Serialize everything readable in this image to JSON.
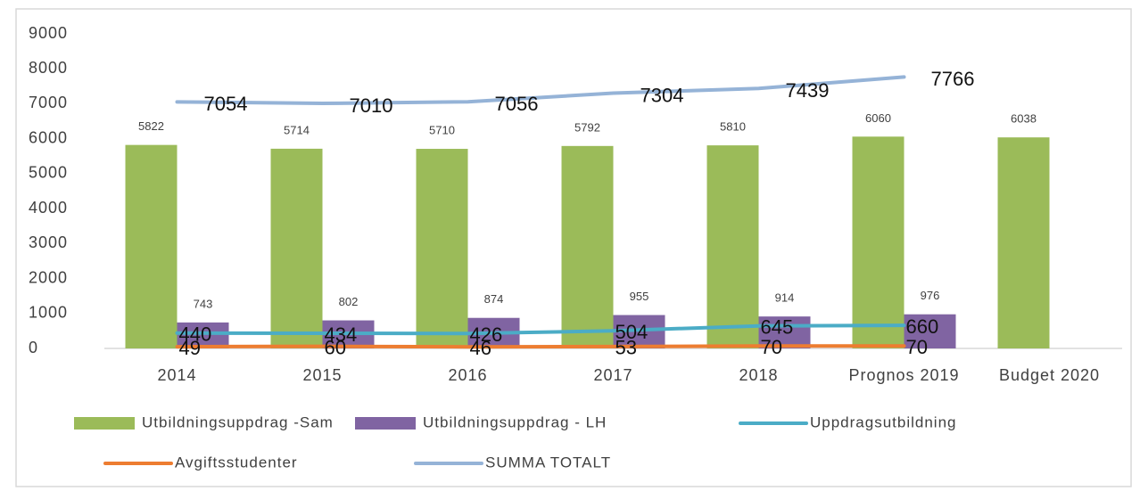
{
  "chart_data": {
    "type": "bar",
    "categories": [
      "2014",
      "2015",
      "2016",
      "2017",
      "2018",
      "Prognos 2019",
      "Budget 2020"
    ],
    "series": [
      {
        "name": "Utbildningsuppdrag -Sam",
        "type": "bar",
        "color": "#9bbb59",
        "values": [
          5822,
          5714,
          5710,
          5792,
          5810,
          6060,
          6038
        ]
      },
      {
        "name": "Utbildningsuppdrag - LH",
        "type": "bar",
        "color": "#8064a2",
        "values": [
          743,
          802,
          874,
          955,
          914,
          976,
          null
        ]
      },
      {
        "name": "Uppdragsutbildning",
        "type": "line",
        "color": "#4bacc6",
        "values": [
          440,
          434,
          426,
          504,
          645,
          660,
          null
        ]
      },
      {
        "name": "Avgiftsstudenter",
        "type": "line",
        "color": "#ed7d31",
        "values": [
          49,
          60,
          46,
          53,
          70,
          70,
          null
        ]
      },
      {
        "name": "SUMMA TOTALT",
        "type": "line",
        "color": "#95b3d7",
        "values": [
          7054,
          7010,
          7056,
          7304,
          7439,
          7766,
          null
        ]
      }
    ],
    "ylim": [
      0,
      9000
    ],
    "yticks": [
      0,
      1000,
      2000,
      3000,
      4000,
      5000,
      6000,
      7000,
      8000,
      9000
    ],
    "grid": false
  }
}
